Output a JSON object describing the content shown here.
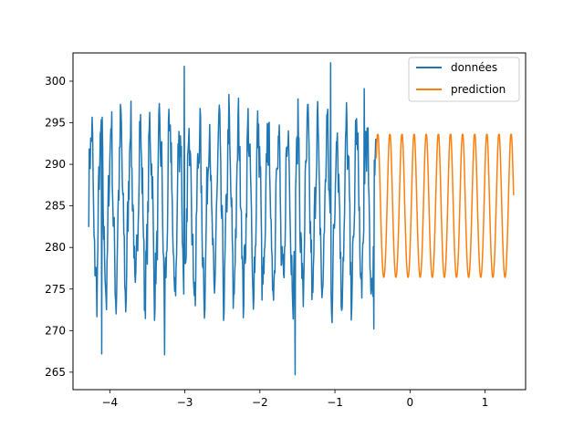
{
  "chart_data": {
    "type": "line",
    "title": "",
    "xlabel": "",
    "ylabel": "",
    "xlim": [
      -4.49,
      1.54
    ],
    "ylim": [
      262.9,
      303.4
    ],
    "xticks": [
      -4,
      -3,
      -2,
      -1,
      0,
      1
    ],
    "yticks": [
      265,
      270,
      275,
      280,
      285,
      290,
      295,
      300
    ],
    "grid": false,
    "legend": {
      "position": "top-right"
    },
    "series": [
      {
        "name": "données",
        "color": "#1f77b4",
        "x_range": [
          -4.28,
          -0.45
        ],
        "n_points": 600,
        "period": 0.131,
        "center": 284.5,
        "amplitude": 9.5,
        "noise": 3.2,
        "extremes": [
          {
            "x": -4.11,
            "y": 267.2
          },
          {
            "x": -3.27,
            "y": 267.1
          },
          {
            "x": -3.01,
            "y": 301.8
          },
          {
            "x": -1.53,
            "y": 264.7
          },
          {
            "x": -1.06,
            "y": 302.2
          },
          {
            "x": -0.61,
            "y": 299.1
          },
          {
            "x": -0.48,
            "y": 270.2
          }
        ]
      },
      {
        "name": "prediction",
        "color": "#ff7f0e",
        "x_range": [
          -0.45,
          1.38
        ],
        "period": 0.1615,
        "phase_x": -0.43,
        "center": 284.5,
        "amplitude": 8.7,
        "top": 293.6,
        "bottom": 275.8
      }
    ]
  }
}
